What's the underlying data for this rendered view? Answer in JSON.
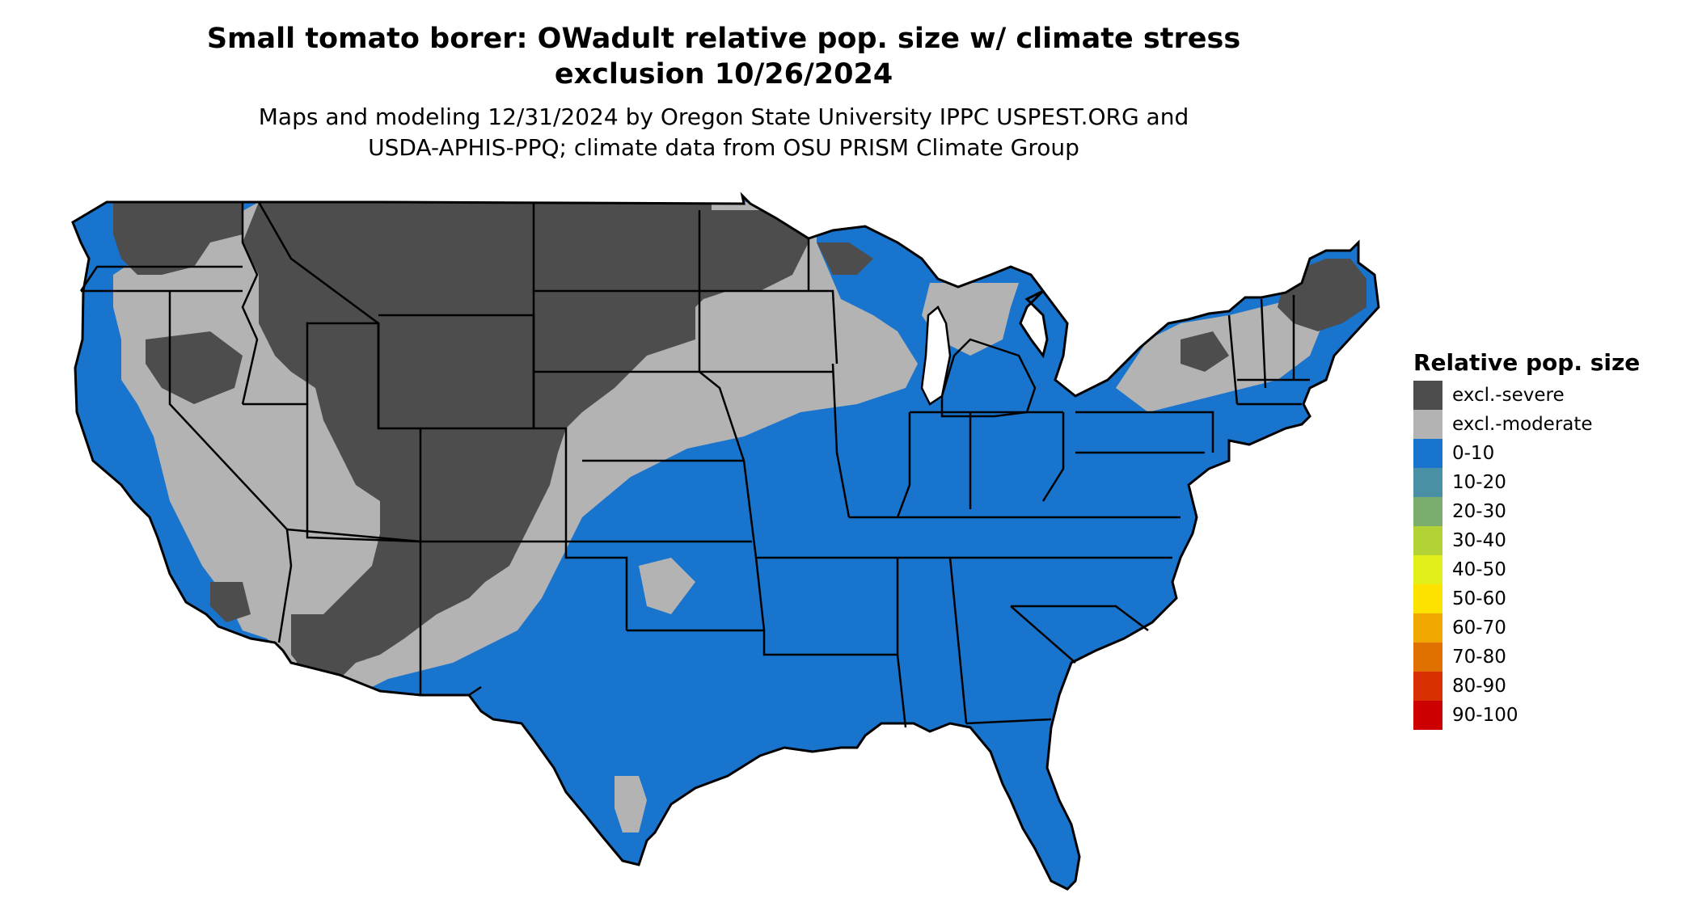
{
  "title_line1": "Small tomato borer: OWadult relative pop. size w/ climate stress",
  "title_line2": "exclusion 10/26/2024",
  "subtitle_line1": "Maps and modeling 12/31/2024 by Oregon State University IPPC USPEST.ORG and",
  "subtitle_line2": "USDA-APHIS-PPQ; climate data from OSU PRISM Climate Group",
  "legend": {
    "title": "Relative pop. size",
    "items": [
      {
        "label": "excl.-severe",
        "color": "#4d4d4d"
      },
      {
        "label": "excl.-moderate",
        "color": "#b3b3b3"
      },
      {
        "label": "0-10",
        "color": "#1874cd"
      },
      {
        "label": "10-20",
        "color": "#4a90a4"
      },
      {
        "label": "20-30",
        "color": "#7bae6e"
      },
      {
        "label": "30-40",
        "color": "#b2d235"
      },
      {
        "label": "40-50",
        "color": "#e3ef1a"
      },
      {
        "label": "50-60",
        "color": "#fde200"
      },
      {
        "label": "60-70",
        "color": "#f0a800"
      },
      {
        "label": "70-80",
        "color": "#e07000"
      },
      {
        "label": "80-90",
        "color": "#d83000"
      },
      {
        "label": "90-100",
        "color": "#cc0000"
      }
    ]
  }
}
